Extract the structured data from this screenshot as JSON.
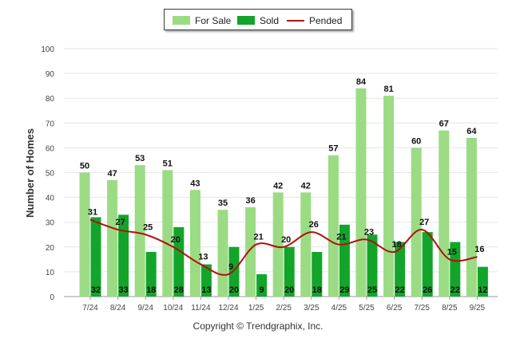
{
  "chart_data": {
    "type": "bar",
    "title": "",
    "xlabel": "",
    "ylabel": "Number of Homes",
    "ylim": [
      0,
      100
    ],
    "yticks": [
      0,
      10,
      20,
      30,
      40,
      50,
      60,
      70,
      80,
      90,
      100
    ],
    "categories": [
      "7/24",
      "8/24",
      "9/24",
      "10/24",
      "11/24",
      "12/24",
      "1/25",
      "2/25",
      "3/25",
      "4/25",
      "5/25",
      "6/25",
      "7/25",
      "8/25",
      "9/25"
    ],
    "series": [
      {
        "name": "For Sale",
        "kind": "bar",
        "color": "#9bdb84",
        "values": [
          50,
          47,
          53,
          51,
          43,
          35,
          36,
          42,
          42,
          57,
          84,
          81,
          60,
          67,
          64
        ]
      },
      {
        "name": "Sold",
        "kind": "bar",
        "color": "#12a52a",
        "values": [
          32,
          33,
          18,
          28,
          13,
          20,
          9,
          20,
          18,
          29,
          25,
          22,
          26,
          22,
          12
        ]
      },
      {
        "name": "Pended",
        "kind": "line",
        "color": "#b01010",
        "values": [
          31,
          27,
          25,
          20,
          13,
          9,
          21,
          20,
          26,
          21,
          23,
          18,
          27,
          15,
          16
        ]
      }
    ],
    "legend": "top-center"
  },
  "legend": {
    "for_sale": "For Sale",
    "sold": "Sold",
    "pended": "Pended"
  },
  "footer": {
    "copyright": "Copyright © Trendgraphix, Inc."
  }
}
